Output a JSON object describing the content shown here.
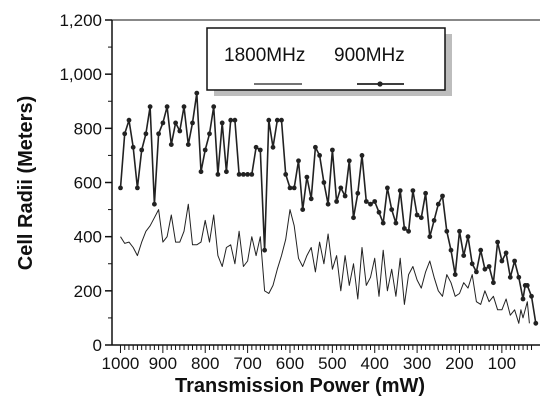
{
  "chart_data": {
    "type": "line",
    "xlabel": "Transmission Power (mW)",
    "ylabel": "Cell Radii (Meters)",
    "xlim": [
      1020,
      10
    ],
    "ylim": [
      0,
      1200
    ],
    "x_ticks": [
      1000,
      900,
      800,
      700,
      600,
      500,
      400,
      300,
      200,
      100
    ],
    "y_ticks": [
      0,
      200,
      400,
      600,
      800,
      1000,
      1200
    ],
    "x_tick_labels": [
      "1000",
      "900",
      "800",
      "700",
      "600",
      "500",
      "400",
      "300",
      "200",
      "100"
    ],
    "y_tick_labels": [
      "0",
      "200",
      "400",
      "600",
      "800",
      "1,000",
      "1,200"
    ],
    "legend": {
      "position": "top-right",
      "entries": [
        "1800MHz",
        "900MHz"
      ]
    },
    "grid": false,
    "series": [
      {
        "name": "1800MHz",
        "color": "#222222",
        "markers": false,
        "points": [
          [
            1000,
            400
          ],
          [
            990,
            375
          ],
          [
            980,
            380
          ],
          [
            970,
            360
          ],
          [
            960,
            330
          ],
          [
            950,
            380
          ],
          [
            940,
            420
          ],
          [
            930,
            440
          ],
          [
            920,
            470
          ],
          [
            910,
            500
          ],
          [
            900,
            380
          ],
          [
            890,
            400
          ],
          [
            880,
            480
          ],
          [
            870,
            380
          ],
          [
            860,
            380
          ],
          [
            850,
            420
          ],
          [
            840,
            520
          ],
          [
            830,
            370
          ],
          [
            820,
            370
          ],
          [
            810,
            380
          ],
          [
            800,
            460
          ],
          [
            790,
            380
          ],
          [
            780,
            480
          ],
          [
            770,
            330
          ],
          [
            760,
            290
          ],
          [
            750,
            360
          ],
          [
            740,
            370
          ],
          [
            730,
            300
          ],
          [
            720,
            420
          ],
          [
            710,
            290
          ],
          [
            700,
            310
          ],
          [
            690,
            400
          ],
          [
            680,
            330
          ],
          [
            670,
            400
          ],
          [
            660,
            200
          ],
          [
            650,
            190
          ],
          [
            640,
            220
          ],
          [
            630,
            280
          ],
          [
            620,
            330
          ],
          [
            610,
            390
          ],
          [
            600,
            500
          ],
          [
            590,
            440
          ],
          [
            580,
            320
          ],
          [
            570,
            290
          ],
          [
            560,
            330
          ],
          [
            550,
            360
          ],
          [
            540,
            270
          ],
          [
            530,
            380
          ],
          [
            520,
            300
          ],
          [
            510,
            410
          ],
          [
            500,
            280
          ],
          [
            490,
            330
          ],
          [
            480,
            200
          ],
          [
            470,
            330
          ],
          [
            460,
            220
          ],
          [
            450,
            300
          ],
          [
            440,
            170
          ],
          [
            430,
            360
          ],
          [
            420,
            220
          ],
          [
            410,
            250
          ],
          [
            400,
            320
          ],
          [
            390,
            180
          ],
          [
            380,
            350
          ],
          [
            370,
            200
          ],
          [
            360,
            280
          ],
          [
            350,
            180
          ],
          [
            340,
            320
          ],
          [
            330,
            150
          ],
          [
            320,
            260
          ],
          [
            310,
            290
          ],
          [
            300,
            240
          ],
          [
            290,
            210
          ],
          [
            280,
            270
          ],
          [
            270,
            310
          ],
          [
            260,
            250
          ],
          [
            250,
            200
          ],
          [
            240,
            180
          ],
          [
            230,
            260
          ],
          [
            220,
            230
          ],
          [
            210,
            180
          ],
          [
            200,
            190
          ],
          [
            190,
            230
          ],
          [
            180,
            210
          ],
          [
            170,
            260
          ],
          [
            160,
            160
          ],
          [
            150,
            150
          ],
          [
            140,
            200
          ],
          [
            130,
            160
          ],
          [
            120,
            180
          ],
          [
            110,
            130
          ],
          [
            100,
            130
          ],
          [
            90,
            170
          ],
          [
            80,
            110
          ],
          [
            70,
            130
          ],
          [
            60,
            80
          ],
          [
            55,
            130
          ],
          [
            50,
            100
          ],
          [
            45,
            130
          ],
          [
            40,
            160
          ],
          [
            35,
            80
          ]
        ]
      },
      {
        "name": "900MHz",
        "color": "#222222",
        "markers": true,
        "points": [
          [
            1000,
            580
          ],
          [
            990,
            780
          ],
          [
            980,
            830
          ],
          [
            970,
            730
          ],
          [
            960,
            580
          ],
          [
            950,
            720
          ],
          [
            940,
            780
          ],
          [
            930,
            880
          ],
          [
            920,
            520
          ],
          [
            910,
            780
          ],
          [
            900,
            820
          ],
          [
            890,
            880
          ],
          [
            880,
            740
          ],
          [
            870,
            820
          ],
          [
            860,
            790
          ],
          [
            850,
            880
          ],
          [
            840,
            740
          ],
          [
            830,
            820
          ],
          [
            820,
            930
          ],
          [
            810,
            640
          ],
          [
            800,
            720
          ],
          [
            790,
            780
          ],
          [
            780,
            880
          ],
          [
            770,
            630
          ],
          [
            760,
            820
          ],
          [
            750,
            640
          ],
          [
            740,
            830
          ],
          [
            730,
            830
          ],
          [
            720,
            630
          ],
          [
            710,
            630
          ],
          [
            700,
            630
          ],
          [
            690,
            630
          ],
          [
            680,
            730
          ],
          [
            670,
            720
          ],
          [
            660,
            350
          ],
          [
            650,
            830
          ],
          [
            640,
            730
          ],
          [
            630,
            830
          ],
          [
            620,
            830
          ],
          [
            610,
            630
          ],
          [
            600,
            580
          ],
          [
            590,
            580
          ],
          [
            580,
            680
          ],
          [
            570,
            500
          ],
          [
            560,
            620
          ],
          [
            550,
            540
          ],
          [
            540,
            730
          ],
          [
            530,
            700
          ],
          [
            520,
            600
          ],
          [
            510,
            520
          ],
          [
            500,
            720
          ],
          [
            490,
            530
          ],
          [
            480,
            580
          ],
          [
            470,
            550
          ],
          [
            460,
            680
          ],
          [
            450,
            470
          ],
          [
            440,
            560
          ],
          [
            430,
            700
          ],
          [
            420,
            530
          ],
          [
            410,
            520
          ],
          [
            400,
            530
          ],
          [
            390,
            490
          ],
          [
            380,
            450
          ],
          [
            370,
            580
          ],
          [
            360,
            500
          ],
          [
            350,
            450
          ],
          [
            340,
            570
          ],
          [
            330,
            430
          ],
          [
            320,
            420
          ],
          [
            310,
            570
          ],
          [
            300,
            480
          ],
          [
            290,
            470
          ],
          [
            280,
            560
          ],
          [
            270,
            400
          ],
          [
            260,
            460
          ],
          [
            250,
            520
          ],
          [
            240,
            550
          ],
          [
            230,
            420
          ],
          [
            220,
            350
          ],
          [
            210,
            260
          ],
          [
            200,
            420
          ],
          [
            190,
            330
          ],
          [
            180,
            400
          ],
          [
            170,
            300
          ],
          [
            160,
            270
          ],
          [
            150,
            350
          ],
          [
            140,
            280
          ],
          [
            130,
            290
          ],
          [
            120,
            230
          ],
          [
            110,
            380
          ],
          [
            100,
            310
          ],
          [
            90,
            340
          ],
          [
            80,
            250
          ],
          [
            70,
            310
          ],
          [
            60,
            250
          ],
          [
            50,
            170
          ],
          [
            45,
            220
          ],
          [
            40,
            220
          ],
          [
            30,
            180
          ],
          [
            20,
            80
          ]
        ]
      }
    ]
  }
}
